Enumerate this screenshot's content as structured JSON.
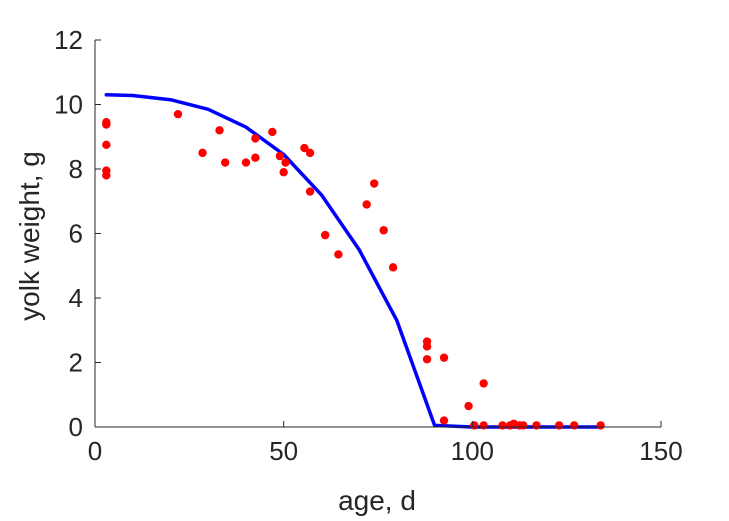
{
  "chart_data": {
    "type": "scatter",
    "title": "",
    "xlabel": "age, d",
    "ylabel": "yolk weight, g",
    "xlim": [
      0,
      150
    ],
    "ylim": [
      0,
      12
    ],
    "xticks": [
      0,
      50,
      100,
      150
    ],
    "yticks": [
      0,
      2,
      4,
      6,
      8,
      10,
      12
    ],
    "grid": false,
    "legend": "none",
    "series": [
      {
        "kind": "scatter",
        "color": "#ff0000",
        "points": [
          [
            3,
            9.45
          ],
          [
            3,
            9.38
          ],
          [
            3,
            8.75
          ],
          [
            3,
            7.95
          ],
          [
            3,
            7.8
          ],
          [
            22,
            9.7
          ],
          [
            28.5,
            8.5
          ],
          [
            33,
            9.2
          ],
          [
            34.5,
            8.2
          ],
          [
            40,
            8.2
          ],
          [
            42.5,
            8.95
          ],
          [
            42.5,
            8.35
          ],
          [
            47,
            9.15
          ],
          [
            49,
            8.4
          ],
          [
            50,
            7.9
          ],
          [
            50.5,
            8.2
          ],
          [
            55.5,
            8.65
          ],
          [
            57,
            8.5
          ],
          [
            57,
            7.3
          ],
          [
            61,
            5.95
          ],
          [
            64.5,
            5.35
          ],
          [
            72,
            6.9
          ],
          [
            74,
            7.55
          ],
          [
            76.5,
            6.1
          ],
          [
            79,
            4.95
          ],
          [
            88,
            2.65
          ],
          [
            88,
            2.5
          ],
          [
            88,
            2.1
          ],
          [
            92.5,
            2.15
          ],
          [
            92.5,
            0.2
          ],
          [
            99,
            0.65
          ],
          [
            100.5,
            0.05
          ],
          [
            103,
            1.35
          ],
          [
            103,
            0.05
          ],
          [
            108,
            0.05
          ],
          [
            110,
            0.05
          ],
          [
            111,
            0.1
          ],
          [
            112.5,
            0.05
          ],
          [
            113.5,
            0.05
          ],
          [
            117,
            0.05
          ],
          [
            123,
            0.05
          ],
          [
            127,
            0.05
          ],
          [
            134,
            0.05
          ]
        ]
      },
      {
        "kind": "line",
        "color": "#0000ff",
        "points": [
          [
            3,
            10.3
          ],
          [
            10,
            10.28
          ],
          [
            20,
            10.15
          ],
          [
            30,
            9.85
          ],
          [
            40,
            9.3
          ],
          [
            50,
            8.45
          ],
          [
            60,
            7.2
          ],
          [
            70,
            5.5
          ],
          [
            80,
            3.3
          ],
          [
            90,
            0.05
          ],
          [
            100,
            0.0
          ],
          [
            110,
            0.0
          ],
          [
            120,
            0.0
          ],
          [
            130,
            0.0
          ],
          [
            134,
            0.0
          ]
        ]
      }
    ]
  }
}
